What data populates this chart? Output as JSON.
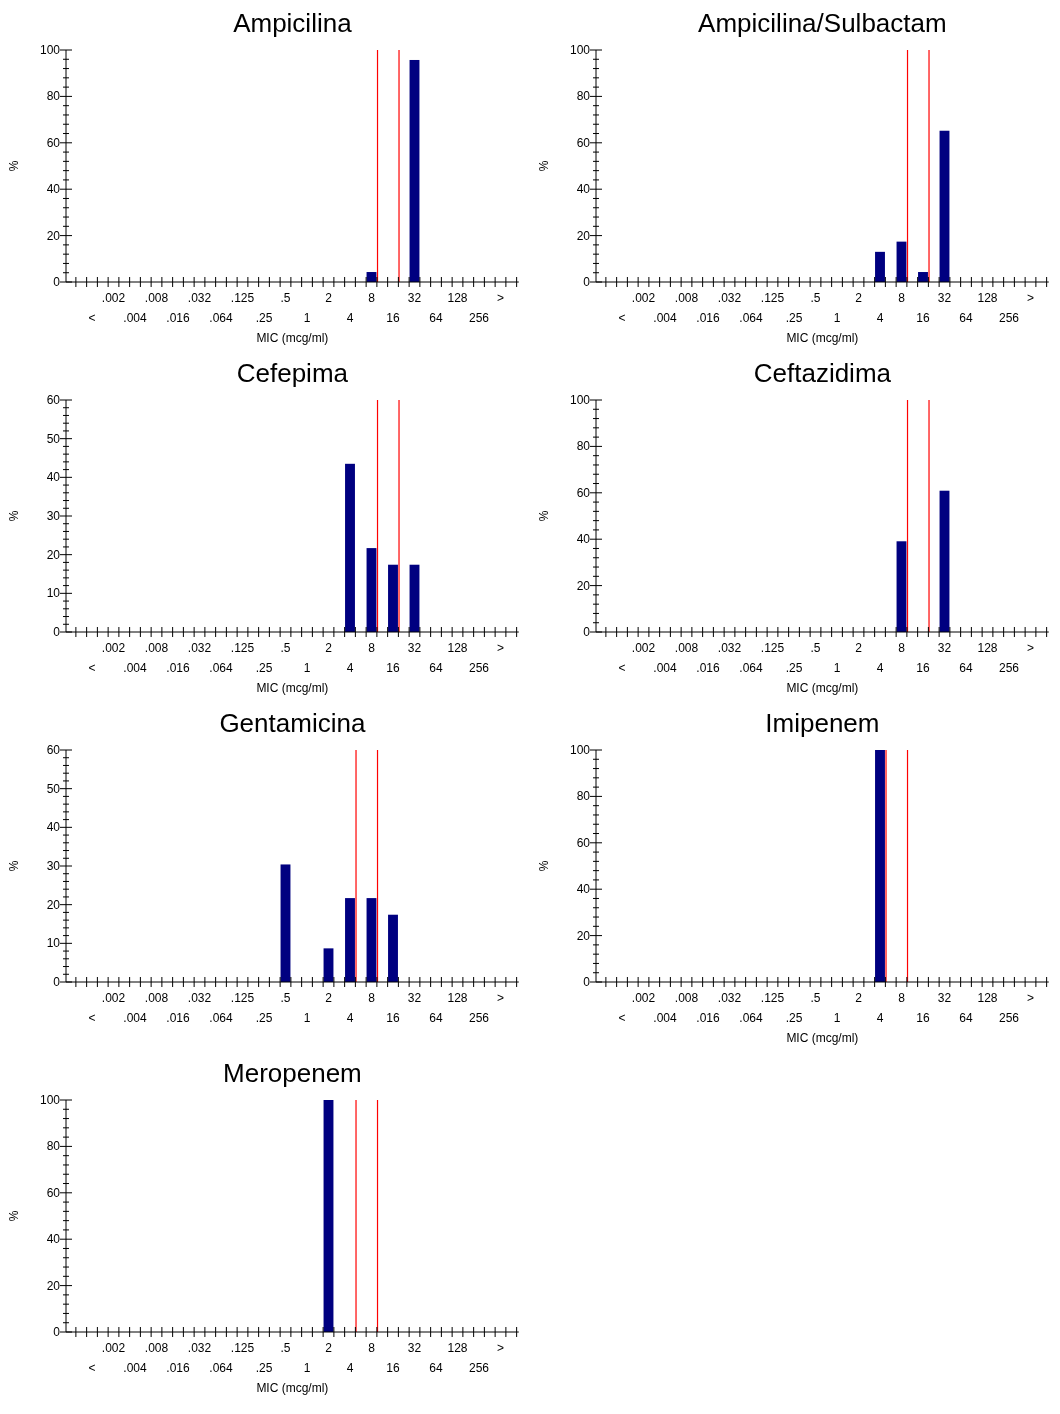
{
  "chart_data": [
    {
      "type": "bar",
      "title": "Ampicilina",
      "xlabel": "MIC (mcg/ml)",
      "ylabel": "%",
      "categories": [
        "<",
        ".002",
        ".004",
        ".008",
        ".016",
        ".032",
        ".064",
        ".125",
        ".25",
        ".5",
        "1",
        "2",
        "4",
        "8",
        "16",
        "32",
        "64",
        "128",
        "256",
        ">"
      ],
      "values": [
        0,
        0,
        0,
        0,
        0,
        0,
        0,
        0,
        0,
        0,
        0,
        0,
        0,
        4.3,
        0,
        95.7,
        0,
        0,
        0,
        0
      ],
      "color": "#000080",
      "ylim": [
        0,
        100
      ],
      "yticks": [
        0,
        20,
        40,
        60,
        80,
        100
      ],
      "ref_lines": [
        {
          "axis": "x",
          "value": "8",
          "color": "#ff0000"
        },
        {
          "axis": "x",
          "value": "16",
          "color": "#ff0000"
        }
      ]
    },
    {
      "type": "bar",
      "title": "Ampicilina/Sulbactam",
      "xlabel": "MIC (mcg/ml)",
      "ylabel": "%",
      "categories": [
        "<",
        ".002",
        ".004",
        ".008",
        ".016",
        ".032",
        ".064",
        ".125",
        ".25",
        ".5",
        "1",
        "2",
        "4",
        "8",
        "16",
        "32",
        "64",
        "128",
        "256",
        ">"
      ],
      "values": [
        0,
        0,
        0,
        0,
        0,
        0,
        0,
        0,
        0,
        0,
        0,
        0,
        13.0,
        17.4,
        4.3,
        65.2,
        0,
        0,
        0,
        0
      ],
      "color": "#000080",
      "ylim": [
        0,
        100
      ],
      "yticks": [
        0,
        20,
        40,
        60,
        80,
        100
      ],
      "ref_lines": [
        {
          "axis": "x",
          "value": "8",
          "color": "#ff0000"
        },
        {
          "axis": "x",
          "value": "16",
          "color": "#ff0000"
        }
      ]
    },
    {
      "type": "bar",
      "title": "Cefepima",
      "xlabel": "MIC (mcg/ml)",
      "ylabel": "%",
      "categories": [
        "<",
        ".002",
        ".004",
        ".008",
        ".016",
        ".032",
        ".064",
        ".125",
        ".25",
        ".5",
        "1",
        "2",
        "4",
        "8",
        "16",
        "32",
        "64",
        "128",
        "256",
        ">"
      ],
      "values": [
        0,
        0,
        0,
        0,
        0,
        0,
        0,
        0,
        0,
        0,
        0,
        0,
        43.5,
        21.7,
        17.4,
        17.4,
        0,
        0,
        0,
        0
      ],
      "color": "#000080",
      "ylim": [
        0,
        60
      ],
      "yticks": [
        0,
        10,
        20,
        30,
        40,
        50,
        60
      ],
      "ref_lines": [
        {
          "axis": "x",
          "value": "8",
          "color": "#ff0000"
        },
        {
          "axis": "x",
          "value": "16",
          "color": "#ff0000"
        }
      ]
    },
    {
      "type": "bar",
      "title": "Ceftazidima",
      "xlabel": "MIC (mcg/ml)",
      "ylabel": "%",
      "categories": [
        "<",
        ".002",
        ".004",
        ".008",
        ".016",
        ".032",
        ".064",
        ".125",
        ".25",
        ".5",
        "1",
        "2",
        "4",
        "8",
        "16",
        "32",
        "64",
        "128",
        "256",
        ">"
      ],
      "values": [
        0,
        0,
        0,
        0,
        0,
        0,
        0,
        0,
        0,
        0,
        0,
        0,
        0,
        39.1,
        0,
        60.9,
        0,
        0,
        0,
        0
      ],
      "color": "#000080",
      "ylim": [
        0,
        100
      ],
      "yticks": [
        0,
        20,
        40,
        60,
        80,
        100
      ],
      "ref_lines": [
        {
          "axis": "x",
          "value": "8",
          "color": "#ff0000"
        },
        {
          "axis": "x",
          "value": "16",
          "color": "#ff0000"
        }
      ]
    },
    {
      "type": "bar",
      "title": "Gentamicina",
      "ylabel": "%",
      "categories": [
        "<",
        ".002",
        ".004",
        ".008",
        ".016",
        ".032",
        ".064",
        ".125",
        ".25",
        ".5",
        "1",
        "2",
        "4",
        "8",
        "16",
        "32",
        "64",
        "128",
        "256",
        ">"
      ],
      "values": [
        0,
        0,
        0,
        0,
        0,
        0,
        0,
        0,
        0,
        30.4,
        0,
        8.7,
        21.7,
        21.7,
        17.4,
        0,
        0,
        0,
        0,
        0
      ],
      "color": "#000080",
      "ylim": [
        0,
        60
      ],
      "yticks": [
        0,
        10,
        20,
        30,
        40,
        50,
        60
      ],
      "ref_lines": [
        {
          "axis": "x",
          "value": "4",
          "color": "#ff0000"
        },
        {
          "axis": "x",
          "value": "8",
          "color": "#ff0000"
        }
      ]
    },
    {
      "type": "bar",
      "title": "Imipenem",
      "xlabel": "MIC (mcg/ml)",
      "ylabel": "%",
      "categories": [
        "<",
        ".002",
        ".004",
        ".008",
        ".016",
        ".032",
        ".064",
        ".125",
        ".25",
        ".5",
        "1",
        "2",
        "4",
        "8",
        "16",
        "32",
        "64",
        "128",
        "256",
        ">"
      ],
      "values": [
        0,
        0,
        0,
        0,
        0,
        0,
        0,
        0,
        0,
        0,
        0,
        0,
        100,
        0,
        0,
        0,
        0,
        0,
        0,
        0
      ],
      "color": "#000080",
      "ylim": [
        0,
        100
      ],
      "yticks": [
        0,
        20,
        40,
        60,
        80,
        100
      ],
      "ref_lines": [
        {
          "axis": "x",
          "value": "4",
          "color": "#ff0000"
        },
        {
          "axis": "x",
          "value": "8",
          "color": "#ff0000"
        }
      ]
    },
    {
      "type": "bar",
      "title": "Meropenem",
      "xlabel": "MIC (mcg/ml)",
      "ylabel": "%",
      "categories": [
        "<",
        ".002",
        ".004",
        ".008",
        ".016",
        ".032",
        ".064",
        ".125",
        ".25",
        ".5",
        "1",
        "2",
        "4",
        "8",
        "16",
        "32",
        "64",
        "128",
        "256",
        ">"
      ],
      "values": [
        0,
        0,
        0,
        0,
        0,
        0,
        0,
        0,
        0,
        0,
        0,
        100,
        0,
        0,
        0,
        0,
        0,
        0,
        0,
        0
      ],
      "color": "#000080",
      "ylim": [
        0,
        100
      ],
      "yticks": [
        0,
        20,
        40,
        60,
        80,
        100
      ],
      "ref_lines": [
        {
          "axis": "x",
          "value": "4",
          "color": "#ff0000"
        },
        {
          "axis": "x",
          "value": "8",
          "color": "#ff0000"
        }
      ]
    }
  ]
}
